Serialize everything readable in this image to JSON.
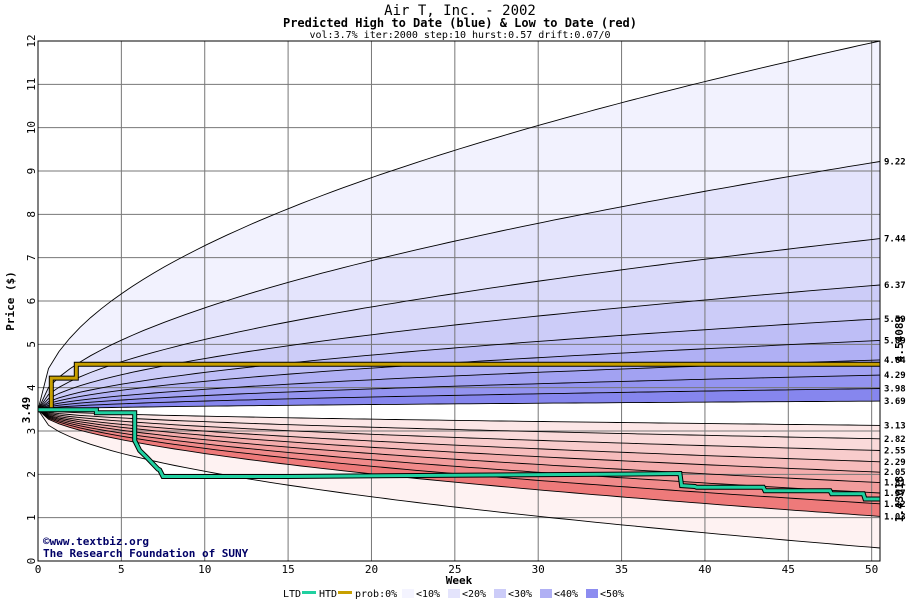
{
  "header": {
    "title": "Air T, Inc. - 2002",
    "subtitle": "Predicted High to Date (blue) &  Low to Date (red)",
    "params": "vol:3.7% iter:2000 step:10 hurst:0.57 drift:0.07/0"
  },
  "credit": {
    "line1": "©www.textbiz.org",
    "line2": "The Research Foundation of SUNY"
  },
  "legend": {
    "ltd": "LTD",
    "htd": "HTD",
    "prob": "prob:0%",
    "b10": "<10%",
    "b20": "<20%",
    "b30": "<30%",
    "b40": "<40%",
    "b50": "<50%"
  },
  "colors": {
    "htd": "#c8a000",
    "ltd": "#20d0a0",
    "start_label": "#006600",
    "right_htd_label": "#a08000",
    "right_ltd_label": "#008040"
  },
  "chart_data": {
    "type": "line",
    "xlabel": "Week",
    "ylabel": "Price ($)",
    "xlim": [
      0,
      50.5
    ],
    "ylim": [
      0,
      12
    ],
    "x_ticks": [
      0,
      5,
      10,
      15,
      20,
      25,
      30,
      35,
      40,
      45,
      50
    ],
    "y_ticks": [
      0,
      1,
      2,
      3,
      4,
      5,
      6,
      7,
      8,
      9,
      10,
      11,
      12
    ],
    "grid": true,
    "start_price": 3.49,
    "start_price_label": "3.49",
    "high_bands_end": [
      9.22,
      7.44,
      6.37,
      5.59,
      5.09,
      4.64,
      4.29,
      3.98,
      3.69
    ],
    "low_bands_end": [
      3.13,
      2.82,
      2.55,
      2.29,
      2.05,
      1.81,
      1.57,
      1.32,
      1.03
    ],
    "high_band_labels": [
      "9.22",
      "7.44",
      "6.37",
      "5.59",
      "5.09",
      "4.64",
      "4.29",
      "3.98",
      "3.69"
    ],
    "low_band_labels": [
      "3.13",
      "2.82",
      "2.55",
      "2.29",
      "2.05",
      "1.81",
      "1.57",
      "1.32",
      "1.03"
    ],
    "max_envelope_end": 12,
    "min_envelope_end": 0.3,
    "htd_final_label": "4.54089",
    "ltd_final_label": "1.43018",
    "series": [
      {
        "name": "HTD",
        "x": [
          0,
          0.8,
          0.8,
          2.3,
          2.3,
          50.5
        ],
        "y": [
          3.49,
          3.49,
          4.22,
          4.22,
          4.54,
          4.54
        ]
      },
      {
        "name": "LTD",
        "x": [
          0,
          3.5,
          3.5,
          5.8,
          5.8,
          6.1,
          6.5,
          7.0,
          7.2,
          7.3,
          7.5,
          15,
          25,
          34,
          38.5,
          38.6,
          39.4,
          39.5,
          43.5,
          43.6,
          47.5,
          47.6,
          49.5,
          49.6,
          50.5
        ],
        "y": [
          3.49,
          3.49,
          3.42,
          3.42,
          2.78,
          2.55,
          2.4,
          2.2,
          2.12,
          2.1,
          1.95,
          1.95,
          1.98,
          2.0,
          2.02,
          1.74,
          1.72,
          1.7,
          1.7,
          1.62,
          1.62,
          1.55,
          1.55,
          1.43,
          1.43
        ]
      }
    ]
  }
}
